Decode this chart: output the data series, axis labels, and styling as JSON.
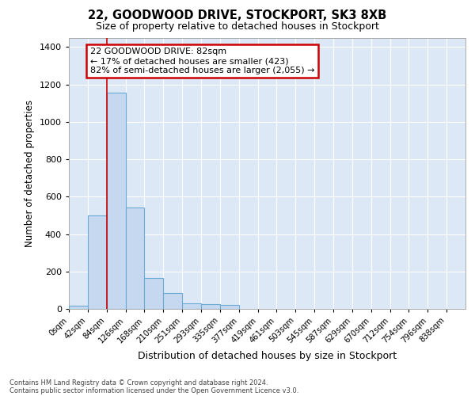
{
  "title1": "22, GOODWOOD DRIVE, STOCKPORT, SK3 8XB",
  "title2": "Size of property relative to detached houses in Stockport",
  "xlabel": "Distribution of detached houses by size in Stockport",
  "ylabel": "Number of detached properties",
  "footnote1": "Contains HM Land Registry data © Crown copyright and database right 2024.",
  "footnote2": "Contains public sector information licensed under the Open Government Licence v3.0.",
  "bin_labels": [
    "0sqm",
    "42sqm",
    "84sqm",
    "126sqm",
    "168sqm",
    "210sqm",
    "251sqm",
    "293sqm",
    "335sqm",
    "377sqm",
    "419sqm",
    "461sqm",
    "503sqm",
    "545sqm",
    "587sqm",
    "629sqm",
    "670sqm",
    "712sqm",
    "754sqm",
    "796sqm",
    "838sqm"
  ],
  "bar_heights": [
    15,
    500,
    1155,
    540,
    165,
    85,
    30,
    25,
    20,
    0,
    0,
    0,
    0,
    0,
    0,
    0,
    0,
    0,
    0,
    0,
    0
  ],
  "bar_color": "#c5d8f0",
  "bar_edge_color": "#6aaad4",
  "background_color": "#dce8f5",
  "grid_color": "#ffffff",
  "red_line_bin": 2,
  "annotation_line1": "22 GOODWOOD DRIVE: 82sqm",
  "annotation_line2": "← 17% of detached houses are smaller (423)",
  "annotation_line3": "82% of semi-detached houses are larger (2,055) →",
  "annotation_box_facecolor": "#ffffff",
  "annotation_box_edgecolor": "#cc0000",
  "ylim": [
    0,
    1450
  ],
  "yticks": [
    0,
    200,
    400,
    600,
    800,
    1000,
    1200,
    1400
  ],
  "bin_width": 42,
  "n_bins": 21,
  "figsize": [
    6.0,
    5.0
  ],
  "dpi": 100
}
